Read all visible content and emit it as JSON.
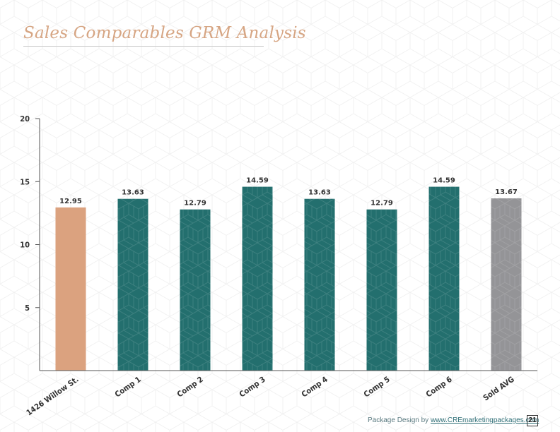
{
  "page": {
    "title": "Sales Comparables GRM Analysis",
    "footer_text": "Package Design by ",
    "footer_link": "www.CREmarketingpackages.com",
    "page_number": "21"
  },
  "colors": {
    "title": "#d6a583",
    "subject_bar": "#dba27f",
    "comp_bar": "#236f6e",
    "avg_bar": "#949497",
    "axis": "#555555"
  },
  "chart_data": {
    "type": "bar",
    "categories": [
      "1426 Willow St.",
      "Comp 1",
      "Comp 2",
      "Comp 3",
      "Comp 4",
      "Comp 5",
      "Comp 6",
      "Sold AVG"
    ],
    "values": [
      12.95,
      13.63,
      12.79,
      14.59,
      13.63,
      12.79,
      14.59,
      13.67
    ],
    "data_labels": [
      "12.95",
      "13.63",
      "12.79",
      "14.59",
      "13.63",
      "12.79",
      "14.59",
      "13.67"
    ],
    "bar_colors": [
      "#dba27f",
      "#236f6e",
      "#236f6e",
      "#236f6e",
      "#236f6e",
      "#236f6e",
      "#236f6e",
      "#949497"
    ],
    "yticks": [
      5,
      10,
      15,
      20
    ],
    "ytick_labels": [
      "5",
      "10",
      "15",
      "20"
    ],
    "ylim": [
      0,
      20
    ],
    "grid": false,
    "legend": "none",
    "title": "",
    "xlabel": "",
    "ylabel": ""
  }
}
